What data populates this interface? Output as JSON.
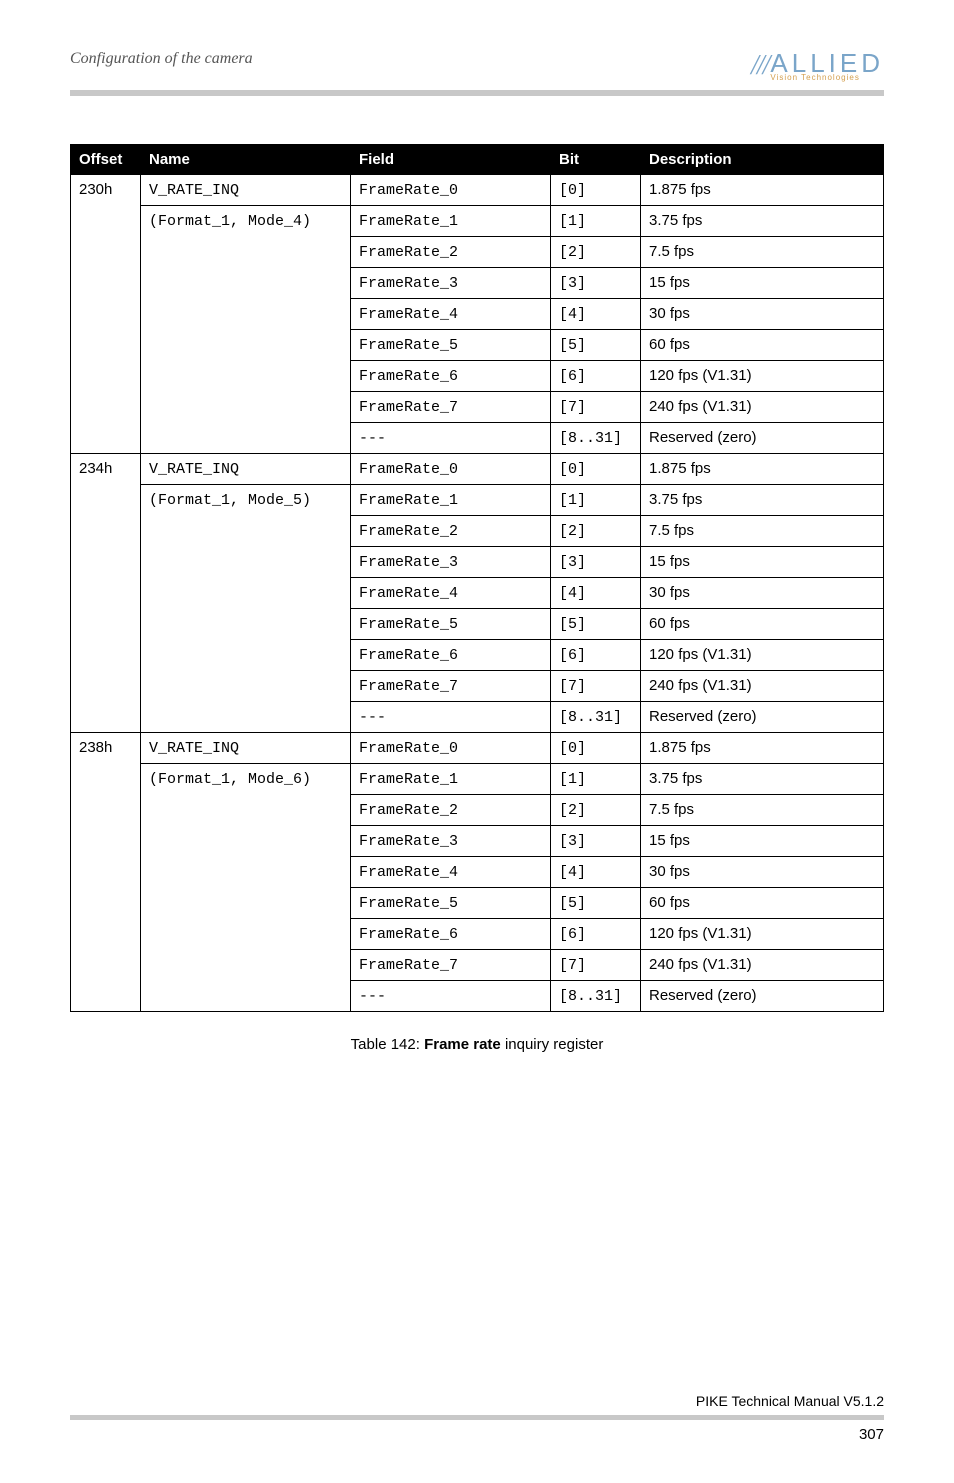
{
  "header": {
    "title": "Configuration of the camera",
    "logo_slashes": "///",
    "logo_text": "ALLIED",
    "logo_sub": "Vision Technologies"
  },
  "table": {
    "headers": {
      "offset": "Offset",
      "name": "Name",
      "field": "Field",
      "bit": "Bit",
      "desc": "Description"
    },
    "sections": [
      {
        "offset": "230h",
        "name": "V_RATE_INQ",
        "subname": "(Format_1, Mode_4)",
        "rows": [
          {
            "field": "FrameRate_0",
            "bit": "[0]",
            "desc": "1.875 fps"
          },
          {
            "field": "FrameRate_1",
            "bit": "[1]",
            "desc": "3.75 fps"
          },
          {
            "field": "FrameRate_2",
            "bit": "[2]",
            "desc": "7.5 fps"
          },
          {
            "field": "FrameRate_3",
            "bit": "[3]",
            "desc": "15 fps"
          },
          {
            "field": "FrameRate_4",
            "bit": "[4]",
            "desc": "30 fps"
          },
          {
            "field": "FrameRate_5",
            "bit": "[5]",
            "desc": "60 fps"
          },
          {
            "field": "FrameRate_6",
            "bit": "[6]",
            "desc": "120 fps (V1.31)"
          },
          {
            "field": "FrameRate_7",
            "bit": "[7]",
            "desc": "240 fps (V1.31)"
          },
          {
            "field": "---",
            "bit": "[8..31]",
            "desc": "Reserved (zero)"
          }
        ]
      },
      {
        "offset": "234h",
        "name": "V_RATE_INQ",
        "subname": "(Format_1, Mode_5)",
        "rows": [
          {
            "field": "FrameRate_0",
            "bit": "[0]",
            "desc": "1.875 fps"
          },
          {
            "field": "FrameRate_1",
            "bit": "[1]",
            "desc": "3.75 fps"
          },
          {
            "field": "FrameRate_2",
            "bit": "[2]",
            "desc": "7.5 fps"
          },
          {
            "field": "FrameRate_3",
            "bit": "[3]",
            "desc": "15 fps"
          },
          {
            "field": "FrameRate_4",
            "bit": "[4]",
            "desc": "30 fps"
          },
          {
            "field": "FrameRate_5",
            "bit": "[5]",
            "desc": "60 fps"
          },
          {
            "field": "FrameRate_6",
            "bit": "[6]",
            "desc": "120 fps (V1.31)"
          },
          {
            "field": "FrameRate_7",
            "bit": "[7]",
            "desc": "240 fps (V1.31)"
          },
          {
            "field": "---",
            "bit": "[8..31]",
            "desc": "Reserved (zero)"
          }
        ]
      },
      {
        "offset": "238h",
        "name": "V_RATE_INQ",
        "subname": "(Format_1, Mode_6)",
        "rows": [
          {
            "field": "FrameRate_0",
            "bit": "[0]",
            "desc": "1.875 fps"
          },
          {
            "field": "FrameRate_1",
            "bit": "[1]",
            "desc": "3.75 fps"
          },
          {
            "field": "FrameRate_2",
            "bit": "[2]",
            "desc": "7.5 fps"
          },
          {
            "field": "FrameRate_3",
            "bit": "[3]",
            "desc": "15 fps"
          },
          {
            "field": "FrameRate_4",
            "bit": "[4]",
            "desc": "30 fps"
          },
          {
            "field": "FrameRate_5",
            "bit": "[5]",
            "desc": "60 fps"
          },
          {
            "field": "FrameRate_6",
            "bit": "[6]",
            "desc": "120 fps (V1.31)"
          },
          {
            "field": "FrameRate_7",
            "bit": "[7]",
            "desc": "240 fps (V1.31)"
          },
          {
            "field": "---",
            "bit": "[8..31]",
            "desc": "Reserved (zero)"
          }
        ]
      }
    ],
    "caption_prefix": "Table 142: ",
    "caption_bold": "Frame rate",
    "caption_suffix": " inquiry register"
  },
  "footer": {
    "manual": "PIKE Technical Manual V5.1.2",
    "page": "307"
  }
}
